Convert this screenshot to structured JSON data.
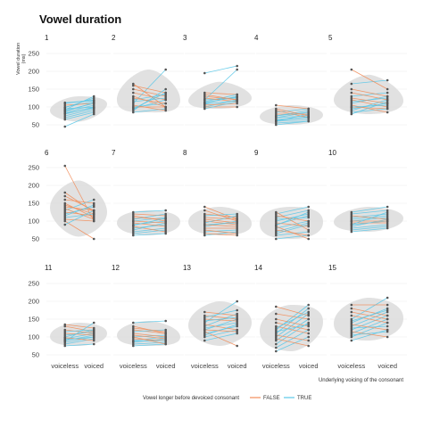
{
  "chart_data": {
    "type": "line",
    "title": "Vowel duration",
    "ylabel": "Vowel duration (ms)",
    "xlabel": "Underlying voicing of the consonant",
    "categories": [
      "voiceless",
      "voiced"
    ],
    "y_ticks": [
      50,
      100,
      150,
      200,
      250
    ],
    "ylim": [
      35,
      265
    ],
    "grid": true,
    "legend": {
      "position": "bottom",
      "title": "Vowel longer before devoiced consonant",
      "entries": [
        {
          "name": "FALSE",
          "color": "#f28e5b"
        },
        {
          "name": "TRUE",
          "color": "#5bc8e8"
        }
      ]
    },
    "panels": [
      {
        "label": "1",
        "pairs": [
          [
            75,
            95,
            "T"
          ],
          [
            80,
            100,
            "T"
          ],
          [
            85,
            105,
            "T"
          ],
          [
            90,
            110,
            "T"
          ],
          [
            95,
            100,
            "T"
          ],
          [
            100,
            115,
            "T"
          ],
          [
            105,
            110,
            "F"
          ],
          [
            110,
            120,
            "T"
          ],
          [
            88,
            112,
            "T"
          ],
          [
            70,
            90,
            "T"
          ],
          [
            65,
            85,
            "T"
          ],
          [
            45,
            80,
            "T"
          ],
          [
            98,
            125,
            "T"
          ],
          [
            92,
            130,
            "T"
          ],
          [
            82,
            98,
            "T"
          ],
          [
            112,
            118,
            "T"
          ]
        ]
      },
      {
        "label": "2",
        "pairs": [
          [
            95,
            120,
            "T"
          ],
          [
            100,
            110,
            "T"
          ],
          [
            110,
            205,
            "T"
          ],
          [
            120,
            135,
            "T"
          ],
          [
            130,
            100,
            "F"
          ],
          [
            140,
            120,
            "F"
          ],
          [
            150,
            130,
            "F"
          ],
          [
            160,
            140,
            "F"
          ],
          [
            165,
            100,
            "F"
          ],
          [
            90,
            150,
            "T"
          ],
          [
            85,
            95,
            "T"
          ],
          [
            105,
            90,
            "F"
          ],
          [
            115,
            125,
            "T"
          ],
          [
            125,
            110,
            "F"
          ],
          [
            100,
            100,
            "F"
          ],
          [
            95,
            140,
            "T"
          ]
        ]
      },
      {
        "label": "3",
        "pairs": [
          [
            100,
            120,
            "T"
          ],
          [
            105,
            110,
            "F"
          ],
          [
            110,
            130,
            "T"
          ],
          [
            120,
            125,
            "T"
          ],
          [
            130,
            120,
            "F"
          ],
          [
            140,
            135,
            "F"
          ],
          [
            115,
            135,
            "T"
          ],
          [
            195,
            215,
            "T"
          ],
          [
            120,
            205,
            "T"
          ],
          [
            100,
            100,
            "F"
          ],
          [
            95,
            115,
            "T"
          ],
          [
            125,
            115,
            "F"
          ],
          [
            112,
            128,
            "T"
          ],
          [
            108,
            118,
            "T"
          ],
          [
            135,
            120,
            "F"
          ]
        ]
      },
      {
        "label": "4",
        "pairs": [
          [
            55,
            60,
            "T"
          ],
          [
            60,
            65,
            "T"
          ],
          [
            65,
            70,
            "T"
          ],
          [
            70,
            75,
            "T"
          ],
          [
            75,
            85,
            "T"
          ],
          [
            80,
            80,
            "F"
          ],
          [
            85,
            95,
            "T"
          ],
          [
            90,
            70,
            "F"
          ],
          [
            105,
            95,
            "F"
          ],
          [
            75,
            90,
            "T"
          ],
          [
            60,
            80,
            "T"
          ],
          [
            50,
            60,
            "T"
          ],
          [
            70,
            85,
            "T"
          ],
          [
            95,
            75,
            "F"
          ],
          [
            62,
            72,
            "T"
          ]
        ]
      },
      {
        "label": "5",
        "pairs": [
          [
            95,
            110,
            "T"
          ],
          [
            100,
            95,
            "F"
          ],
          [
            110,
            130,
            "T"
          ],
          [
            120,
            100,
            "F"
          ],
          [
            130,
            140,
            "T"
          ],
          [
            140,
            120,
            "F"
          ],
          [
            150,
            130,
            "F"
          ],
          [
            165,
            175,
            "T"
          ],
          [
            205,
            150,
            "F"
          ],
          [
            90,
            120,
            "T"
          ],
          [
            85,
            95,
            "T"
          ],
          [
            105,
            85,
            "F"
          ],
          [
            115,
            125,
            "T"
          ],
          [
            125,
            110,
            "F"
          ],
          [
            100,
            105,
            "T"
          ],
          [
            80,
            115,
            "T"
          ]
        ]
      },
      {
        "label": "6",
        "pairs": [
          [
            255,
            100,
            "F"
          ],
          [
            180,
            125,
            "F"
          ],
          [
            150,
            110,
            "F"
          ],
          [
            130,
            160,
            "T"
          ],
          [
            120,
            140,
            "T"
          ],
          [
            110,
            120,
            "T"
          ],
          [
            100,
            50,
            "F"
          ],
          [
            140,
            130,
            "F"
          ],
          [
            160,
            150,
            "F"
          ],
          [
            170,
            130,
            "F"
          ],
          [
            135,
            105,
            "F"
          ],
          [
            125,
            115,
            "F"
          ],
          [
            115,
            145,
            "T"
          ],
          [
            105,
            100,
            "F"
          ],
          [
            145,
            120,
            "F"
          ],
          [
            90,
            130,
            "T"
          ]
        ]
      },
      {
        "label": "7",
        "pairs": [
          [
            60,
            65,
            "T"
          ],
          [
            70,
            80,
            "T"
          ],
          [
            80,
            90,
            "T"
          ],
          [
            90,
            100,
            "T"
          ],
          [
            100,
            110,
            "T"
          ],
          [
            110,
            105,
            "F"
          ],
          [
            120,
            115,
            "F"
          ],
          [
            125,
            130,
            "T"
          ],
          [
            85,
            70,
            "F"
          ],
          [
            75,
            95,
            "T"
          ],
          [
            95,
            85,
            "F"
          ],
          [
            105,
            120,
            "T"
          ],
          [
            115,
            100,
            "F"
          ],
          [
            65,
            75,
            "T"
          ],
          [
            100,
            95,
            "F"
          ],
          [
            88,
            108,
            "T"
          ]
        ]
      },
      {
        "label": "8",
        "pairs": [
          [
            60,
            70,
            "T"
          ],
          [
            70,
            75,
            "T"
          ],
          [
            80,
            80,
            "F"
          ],
          [
            90,
            95,
            "T"
          ],
          [
            100,
            90,
            "F"
          ],
          [
            110,
            105,
            "F"
          ],
          [
            120,
            110,
            "F"
          ],
          [
            140,
            105,
            "F"
          ],
          [
            85,
            100,
            "T"
          ],
          [
            75,
            65,
            "F"
          ],
          [
            95,
            115,
            "T"
          ],
          [
            105,
            95,
            "F"
          ],
          [
            115,
            120,
            "T"
          ],
          [
            65,
            60,
            "F"
          ],
          [
            130,
            100,
            "F"
          ],
          [
            90,
            85,
            "F"
          ]
        ]
      },
      {
        "label": "9",
        "pairs": [
          [
            50,
            60,
            "T"
          ],
          [
            60,
            70,
            "T"
          ],
          [
            70,
            95,
            "T"
          ],
          [
            80,
            100,
            "T"
          ],
          [
            90,
            115,
            "T"
          ],
          [
            100,
            120,
            "T"
          ],
          [
            110,
            130,
            "T"
          ],
          [
            120,
            140,
            "T"
          ],
          [
            125,
            75,
            "F"
          ],
          [
            85,
            50,
            "F"
          ],
          [
            75,
            60,
            "F"
          ],
          [
            95,
            85,
            "F"
          ],
          [
            105,
            110,
            "T"
          ],
          [
            65,
            90,
            "T"
          ],
          [
            115,
            100,
            "F"
          ],
          [
            88,
            125,
            "T"
          ]
        ]
      },
      {
        "label": "10",
        "pairs": [
          [
            70,
            80,
            "T"
          ],
          [
            80,
            90,
            "T"
          ],
          [
            90,
            100,
            "T"
          ],
          [
            100,
            110,
            "T"
          ],
          [
            110,
            120,
            "T"
          ],
          [
            120,
            130,
            "T"
          ],
          [
            125,
            140,
            "T"
          ],
          [
            95,
            95,
            "F"
          ],
          [
            85,
            105,
            "T"
          ],
          [
            105,
            115,
            "T"
          ],
          [
            115,
            105,
            "F"
          ],
          [
            75,
            85,
            "T"
          ],
          [
            100,
            100,
            "F"
          ],
          [
            90,
            125,
            "T"
          ]
        ]
      },
      {
        "label": "11",
        "pairs": [
          [
            75,
            80,
            "T"
          ],
          [
            80,
            95,
            "T"
          ],
          [
            85,
            100,
            "T"
          ],
          [
            90,
            105,
            "T"
          ],
          [
            95,
            110,
            "T"
          ],
          [
            100,
            120,
            "T"
          ],
          [
            105,
            115,
            "T"
          ],
          [
            110,
            105,
            "F"
          ],
          [
            120,
            110,
            "F"
          ],
          [
            130,
            115,
            "F"
          ],
          [
            135,
            125,
            "F"
          ],
          [
            88,
            140,
            "T"
          ],
          [
            98,
            90,
            "F"
          ],
          [
            92,
            100,
            "T"
          ],
          [
            115,
            120,
            "T"
          ]
        ]
      },
      {
        "label": "12",
        "pairs": [
          [
            75,
            80,
            "T"
          ],
          [
            80,
            85,
            "T"
          ],
          [
            85,
            95,
            "T"
          ],
          [
            90,
            100,
            "T"
          ],
          [
            100,
            105,
            "T"
          ],
          [
            105,
            95,
            "F"
          ],
          [
            110,
            100,
            "F"
          ],
          [
            120,
            110,
            "F"
          ],
          [
            130,
            110,
            "F"
          ],
          [
            140,
            145,
            "T"
          ],
          [
            95,
            90,
            "F"
          ],
          [
            115,
            120,
            "T"
          ],
          [
            88,
            90,
            "T"
          ],
          [
            125,
            115,
            "F"
          ],
          [
            100,
            80,
            "F"
          ]
        ]
      },
      {
        "label": "13",
        "pairs": [
          [
            90,
            110,
            "T"
          ],
          [
            100,
            120,
            "T"
          ],
          [
            110,
            130,
            "T"
          ],
          [
            120,
            150,
            "T"
          ],
          [
            130,
            165,
            "T"
          ],
          [
            140,
            200,
            "T"
          ],
          [
            150,
            145,
            "F"
          ],
          [
            160,
            150,
            "F"
          ],
          [
            170,
            160,
            "F"
          ],
          [
            115,
            75,
            "F"
          ],
          [
            125,
            140,
            "T"
          ],
          [
            135,
            120,
            "F"
          ],
          [
            105,
            135,
            "T"
          ],
          [
            145,
            155,
            "T"
          ],
          [
            120,
            115,
            "F"
          ],
          [
            155,
            175,
            "T"
          ]
        ]
      },
      {
        "label": "14",
        "pairs": [
          [
            60,
            100,
            "T"
          ],
          [
            70,
            120,
            "T"
          ],
          [
            80,
            140,
            "T"
          ],
          [
            90,
            150,
            "T"
          ],
          [
            100,
            165,
            "T"
          ],
          [
            110,
            180,
            "T"
          ],
          [
            120,
            190,
            "T"
          ],
          [
            130,
            110,
            "F"
          ],
          [
            140,
            120,
            "F"
          ],
          [
            150,
            130,
            "F"
          ],
          [
            165,
            150,
            "F"
          ],
          [
            185,
            160,
            "F"
          ],
          [
            95,
            75,
            "F"
          ],
          [
            105,
            90,
            "F"
          ],
          [
            115,
            135,
            "T"
          ],
          [
            125,
            170,
            "T"
          ]
        ]
      },
      {
        "label": "15",
        "pairs": [
          [
            90,
            120,
            "T"
          ],
          [
            100,
            140,
            "T"
          ],
          [
            110,
            150,
            "T"
          ],
          [
            120,
            160,
            "T"
          ],
          [
            130,
            170,
            "T"
          ],
          [
            140,
            180,
            "T"
          ],
          [
            150,
            210,
            "T"
          ],
          [
            160,
            140,
            "F"
          ],
          [
            170,
            150,
            "F"
          ],
          [
            180,
            160,
            "F"
          ],
          [
            190,
            190,
            "F"
          ],
          [
            115,
            100,
            "F"
          ],
          [
            125,
            130,
            "T"
          ],
          [
            135,
            120,
            "F"
          ],
          [
            145,
            175,
            "T"
          ],
          [
            105,
            115,
            "T"
          ]
        ]
      }
    ]
  }
}
